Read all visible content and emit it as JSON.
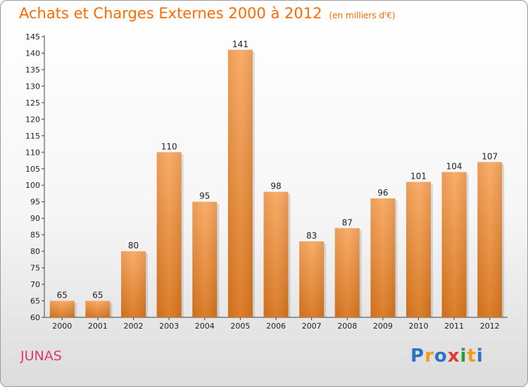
{
  "chart_data": {
    "type": "bar",
    "title": "Achats et Charges Externes 2000 à 2012",
    "subtitle": "(en milliers d'€)",
    "categories": [
      "2000",
      "2001",
      "2002",
      "2003",
      "2004",
      "2005",
      "2006",
      "2007",
      "2008",
      "2009",
      "2010",
      "2011",
      "2012"
    ],
    "values": [
      65,
      65,
      80,
      110,
      95,
      141,
      98,
      83,
      87,
      96,
      101,
      104,
      107
    ],
    "ylim": [
      60,
      145
    ],
    "yticks": [
      60,
      65,
      70,
      75,
      80,
      85,
      90,
      95,
      100,
      105,
      110,
      115,
      120,
      125,
      130,
      135,
      140,
      145
    ],
    "grid": false,
    "bar_color_top": "#f9a860",
    "bar_color_bottom": "#d9761e"
  },
  "location": "JUNAS",
  "logo": {
    "text": "Proxiti",
    "letters": [
      {
        "ch": "P",
        "color": "#2b73c6"
      },
      {
        "ch": "r",
        "color": "#f59a1b"
      },
      {
        "ch": "o",
        "color": "#2b73c6"
      },
      {
        "ch": "x",
        "color": "#e03a2e"
      },
      {
        "ch": "i",
        "color": "#2e9a3c"
      },
      {
        "ch": "t",
        "color": "#f59a1b"
      },
      {
        "ch": "i",
        "color": "#2b73c6"
      }
    ]
  }
}
